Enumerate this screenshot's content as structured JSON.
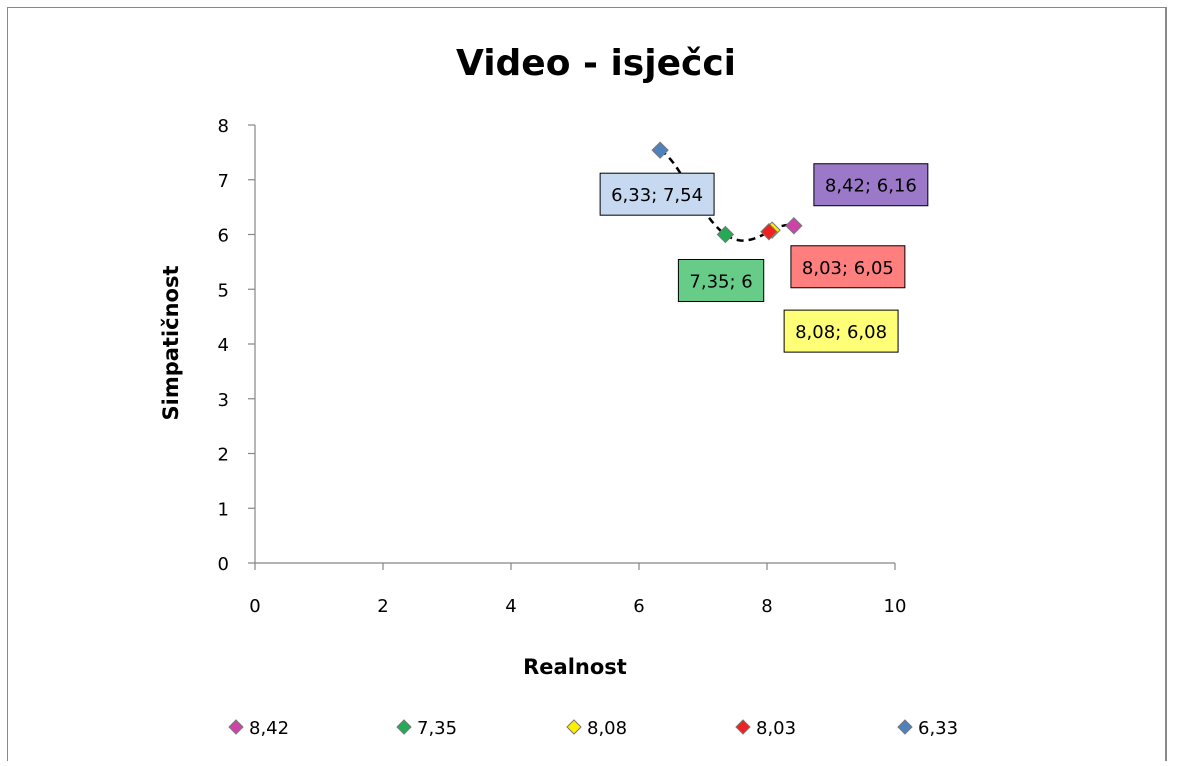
{
  "chart_data": {
    "type": "scatter",
    "title": "Video - isječci",
    "xlabel": "Realnost",
    "ylabel": "Simpatičnost",
    "xlim": [
      0,
      10
    ],
    "ylim": [
      0,
      8
    ],
    "xticks": [
      "0",
      "2",
      "4",
      "6",
      "8",
      "10"
    ],
    "yticks": [
      "0",
      "1",
      "2",
      "3",
      "4",
      "5",
      "6",
      "7",
      "8"
    ],
    "grid": false,
    "legend_position": "bottom",
    "trendline": "polynomial, dashed black",
    "series": [
      {
        "name": "8,42",
        "x": 8.42,
        "y": 6.16,
        "marker_color": "#cc44aa",
        "label": "8,42; 6,16",
        "label_bg": "#9b78c8"
      },
      {
        "name": "7,35",
        "x": 7.35,
        "y": 6,
        "marker_color": "#22aa55",
        "label": "7,35; 6",
        "label_bg": "#66cc88"
      },
      {
        "name": "8,08",
        "x": 8.08,
        "y": 6.08,
        "marker_color": "#ffee00",
        "label": "8,08; 6,08",
        "label_bg": "#ffff77"
      },
      {
        "name": "8,03",
        "x": 8.03,
        "y": 6.05,
        "marker_color": "#ee2222",
        "label": "8,03; 6,05",
        "label_bg": "#ff7f7f"
      },
      {
        "name": "6,33",
        "x": 6.33,
        "y": 7.54,
        "marker_color": "#4f81bd",
        "label": "6,33; 7,54",
        "label_bg": "#c6d9f1"
      }
    ]
  }
}
